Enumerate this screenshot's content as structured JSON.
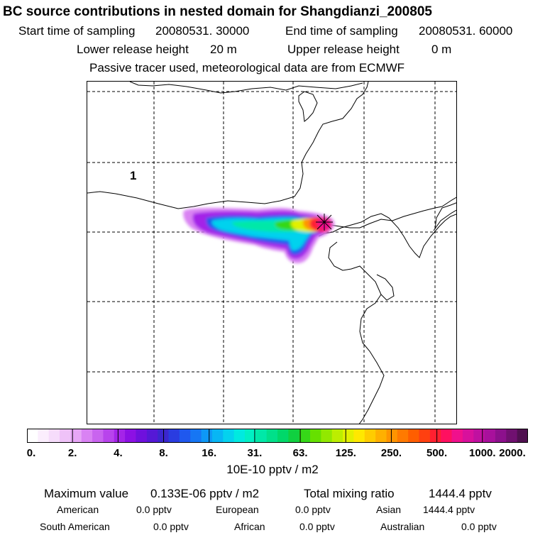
{
  "title": "BC  source contributions in nested domain for Shangdianzi_200805",
  "header": {
    "start_label": "Start time of sampling",
    "start_value": "20080531. 30000",
    "end_label": "End time of sampling",
    "end_value": "20080531. 60000",
    "lower_label": "Lower release height",
    "lower_value": "20 m",
    "upper_label": "Upper release height",
    "upper_value": "0 m",
    "tracer_note": "Passive tracer used, meteorological data are from ECMWF"
  },
  "map": {
    "region_label": "1",
    "marker": "receptor-star-icon"
  },
  "colorbar": {
    "ticks": [
      "0.",
      "2.",
      "4.",
      "8.",
      "16.",
      "31.",
      "63.",
      "125.",
      "250.",
      "500.",
      "1000.",
      "2000."
    ],
    "colors": [
      "#ffffff",
      "#fbeefd",
      "#f6dcfb",
      "#efc2f8",
      "#e7a6f6",
      "#d982f3",
      "#c964ef",
      "#b844ec",
      "#a424e8",
      "#8c10e4",
      "#6f10dd",
      "#5518d6",
      "#3b26ce",
      "#2a3ce0",
      "#1f58ee",
      "#1676f4",
      "#0e98f6",
      "#08b6f4",
      "#04d2ee",
      "#00eae0",
      "#00f0c4",
      "#00e8a8",
      "#00e08a",
      "#00d86a",
      "#10d040",
      "#36d818",
      "#66e000",
      "#92e800",
      "#bcee00",
      "#e2f000",
      "#ffe800",
      "#ffcc00",
      "#ffb000",
      "#ff9400",
      "#ff7a00",
      "#ff5e00",
      "#ff4010",
      "#ff2030",
      "#ff1060",
      "#f0108c",
      "#d8109c",
      "#c010a0",
      "#a8109c",
      "#8c108c",
      "#701070",
      "#501050"
    ],
    "units": "10E-10 pptv / m2"
  },
  "summary": {
    "max_label": "Maximum value",
    "max_value": "0.133E-06 pptv / m2",
    "total_label": "Total mixing ratio",
    "total_value": "1444.4 pptv",
    "regions": [
      {
        "name": "American",
        "value": "0.0 pptv"
      },
      {
        "name": "European",
        "value": "0.0 pptv"
      },
      {
        "name": "Asian",
        "value": "1444.4 pptv"
      },
      {
        "name": "South American",
        "value": "0.0 pptv"
      },
      {
        "name": "African",
        "value": "0.0 pptv"
      },
      {
        "name": "Australian",
        "value": "0.0 pptv"
      }
    ]
  }
}
